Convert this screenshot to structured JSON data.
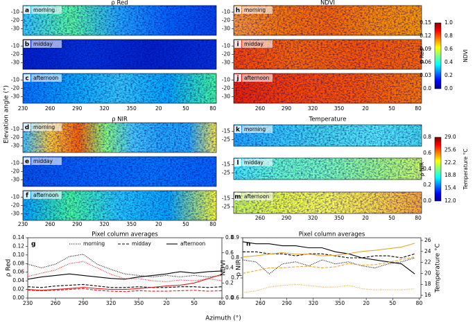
{
  "ylabel": "Elevation angle (°)",
  "xlabel": "Azimuth (°)",
  "maps": [
    {
      "title": "ρ Red",
      "yticks": [
        "-10",
        "-20",
        "-30"
      ],
      "xticks": [
        "230",
        "260",
        "290",
        "320",
        "350",
        "20",
        "50",
        "80"
      ],
      "rows": [
        {
          "letter": "a",
          "label": "morning"
        },
        {
          "letter": "b",
          "label": "midday"
        },
        {
          "letter": "c",
          "label": "afternoon"
        }
      ]
    },
    {
      "title": "ρ NIR",
      "yticks": [
        "-10",
        "-20",
        "-30"
      ],
      "xticks": [
        "230",
        "260",
        "290",
        "320",
        "350",
        "20",
        "50",
        "80"
      ],
      "rows": [
        {
          "letter": "d",
          "label": "morning"
        },
        {
          "letter": "e",
          "label": "midday"
        },
        {
          "letter": "f",
          "label": "afternoon"
        }
      ]
    },
    {
      "title": "NDVI",
      "yticks": [
        "-10",
        "-20",
        "-30"
      ],
      "xticks": [
        "260",
        "290",
        "320",
        "350",
        "20",
        "50",
        "80"
      ],
      "rows": [
        {
          "letter": "h",
          "label": "morning"
        },
        {
          "letter": "i",
          "label": "midday"
        },
        {
          "letter": "j",
          "label": "afternoon"
        }
      ]
    },
    {
      "title": "Temperature",
      "yticks": [
        "-15",
        "-25"
      ],
      "xticks": [
        "260",
        "290",
        "320",
        "350",
        "20",
        "50",
        "80"
      ],
      "rows": [
        {
          "letter": "k",
          "label": "morning"
        },
        {
          "letter": "l",
          "label": "midday"
        },
        {
          "letter": "m",
          "label": "afternoon"
        }
      ]
    }
  ],
  "colorbars": [
    {
      "left_label": "ρ Red",
      "left_ticks": [
        "0.0",
        "0.03",
        "0.06",
        "0.09",
        "0.12",
        "0.15"
      ],
      "right_label": "NDVI",
      "right_ticks": [
        "0.0",
        "0.2",
        "0.4",
        "0.6",
        "0.8",
        "1.0"
      ]
    },
    {
      "left_label": "ρ NIR",
      "left_ticks": [
        "0.0",
        "0.2",
        "0.4",
        "0.6",
        "0.8"
      ],
      "right_label": "Temperature °C",
      "right_ticks": [
        "12.0",
        "15.4",
        "18.8",
        "22.2",
        "25.6",
        "29.0"
      ]
    }
  ],
  "chart_data": [
    {
      "type": "line",
      "letter": "g",
      "title": "Pixel column averages",
      "ylabel": "ρ Red",
      "ylabel_color": "#e31a1c",
      "y2label": "ρ NIR",
      "x": [
        230,
        245,
        260,
        275,
        290,
        305,
        320,
        335,
        350,
        365,
        380,
        395,
        410,
        425,
        440
      ],
      "xlim": [
        230,
        440
      ],
      "xticks": [
        230,
        260,
        290,
        320,
        350,
        {
          "value": 380,
          "label": "20"
        },
        {
          "value": 410,
          "label": "50"
        },
        {
          "value": 440,
          "label": "80"
        }
      ],
      "ylim": [
        0,
        0.14
      ],
      "yticks": [
        {
          "value": 0,
          "label": "0.00"
        },
        0.02,
        0.04,
        0.06,
        0.08,
        {
          "value": 0.1,
          "label": "0.10"
        },
        0.12,
        0.14
      ],
      "y2lim": [
        0,
        0.8
      ],
      "y2ticks": [
        {
          "value": 0,
          "label": "0.0"
        },
        0.2,
        0.4,
        0.6,
        0.8
      ],
      "legend": "top",
      "series": [
        {
          "name": "morning",
          "color": "#000000",
          "dash": "dotted",
          "axis": "y2",
          "values": [
            0.45,
            0.4,
            0.45,
            0.55,
            0.58,
            0.45,
            0.38,
            0.32,
            0.3,
            0.28,
            0.3,
            0.28,
            0.3,
            0.28,
            0.3
          ]
        },
        {
          "name": "midday",
          "color": "#000000",
          "dash": "dashed",
          "axis": "y2",
          "values": [
            0.15,
            0.14,
            0.16,
            0.17,
            0.18,
            0.16,
            0.14,
            0.14,
            0.15,
            0.14,
            0.14,
            0.15,
            0.15,
            0.14,
            0.15
          ]
        },
        {
          "name": "afternoon",
          "color": "#000000",
          "dash": "solid",
          "axis": "y2",
          "values": [
            0.25,
            0.28,
            0.3,
            0.32,
            0.3,
            0.28,
            0.26,
            0.25,
            0.28,
            0.3,
            0.32,
            0.35,
            0.33,
            0.35,
            0.36
          ]
        },
        {
          "color": "#e31a1c",
          "dash": "dotted",
          "axis": "y",
          "values": [
            0.05,
            0.058,
            0.065,
            0.08,
            0.085,
            0.07,
            0.055,
            0.045,
            0.045,
            0.04,
            0.038,
            0.042,
            0.04,
            0.045,
            0.04
          ]
        },
        {
          "color": "#e31a1c",
          "dash": "dashed",
          "axis": "y",
          "values": [
            0.018,
            0.017,
            0.018,
            0.02,
            0.022,
            0.018,
            0.016,
            0.015,
            0.017,
            0.016,
            0.016,
            0.017,
            0.018,
            0.016,
            0.017
          ]
        },
        {
          "color": "#e31a1c",
          "dash": "solid",
          "axis": "y",
          "values": [
            0.02,
            0.018,
            0.02,
            0.022,
            0.025,
            0.022,
            0.02,
            0.02,
            0.022,
            0.025,
            0.028,
            0.03,
            0.035,
            0.045,
            0.055
          ]
        }
      ]
    },
    {
      "type": "line",
      "letter": "n",
      "title": "Pixel column averages",
      "ylabel": "NDVI",
      "y2label": "Temperature °C",
      "y2label_color": "#e6a532",
      "x": [
        240,
        255,
        270,
        285,
        300,
        315,
        330,
        345,
        360,
        375,
        390,
        405,
        420,
        435
      ],
      "xlim": [
        240,
        442
      ],
      "xticks": [
        260,
        290,
        320,
        350,
        {
          "value": 380,
          "label": "20"
        },
        {
          "value": 410,
          "label": "50"
        },
        {
          "value": 440,
          "label": "80"
        }
      ],
      "ylim": [
        0.6,
        0.9
      ],
      "yticks": [
        0.6,
        0.7,
        0.8,
        0.9
      ],
      "y2lim": [
        15.5,
        26.5
      ],
      "y2ticks": [
        16,
        18,
        20,
        22,
        24,
        26
      ],
      "series": [
        {
          "color": "#000000",
          "dash": "dotted",
          "axis": "y",
          "values": [
            0.79,
            0.78,
            0.72,
            0.77,
            0.78,
            0.76,
            0.79,
            0.77,
            0.78,
            0.76,
            0.75,
            0.77,
            0.78,
            0.8
          ]
        },
        {
          "color": "#000000",
          "dash": "dashed",
          "axis": "y",
          "values": [
            0.83,
            0.83,
            0.82,
            0.82,
            0.81,
            0.82,
            0.82,
            0.81,
            0.8,
            0.8,
            0.81,
            0.81,
            0.8,
            0.82
          ]
        },
        {
          "color": "#000000",
          "dash": "solid",
          "axis": "y",
          "values": [
            0.88,
            0.87,
            0.87,
            0.86,
            0.86,
            0.85,
            0.85,
            0.83,
            0.82,
            0.8,
            0.79,
            0.78,
            0.77,
            0.72
          ]
        },
        {
          "color": "#e6a532",
          "dash": "dotted",
          "axis": "y2",
          "values": [
            16.5,
            16.8,
            17.5,
            17.8,
            18.0,
            17.8,
            17.5,
            17.5,
            17.8,
            17.2,
            17.0,
            17.0,
            17.0,
            17.2
          ]
        },
        {
          "color": "#e6a532",
          "dash": "dashed",
          "axis": "y2",
          "values": [
            20.0,
            20.5,
            21.0,
            21.0,
            21.2,
            21.3,
            21.0,
            21.2,
            21.8,
            21.5,
            21.6,
            22.0,
            22.5,
            23.0
          ]
        },
        {
          "color": "#e6a532",
          "dash": "solid",
          "axis": "y2",
          "values": [
            23.0,
            23.2,
            23.5,
            23.8,
            23.5,
            23.5,
            23.2,
            23.3,
            23.6,
            24.0,
            24.2,
            24.5,
            24.8,
            25.5
          ]
        }
      ]
    }
  ]
}
